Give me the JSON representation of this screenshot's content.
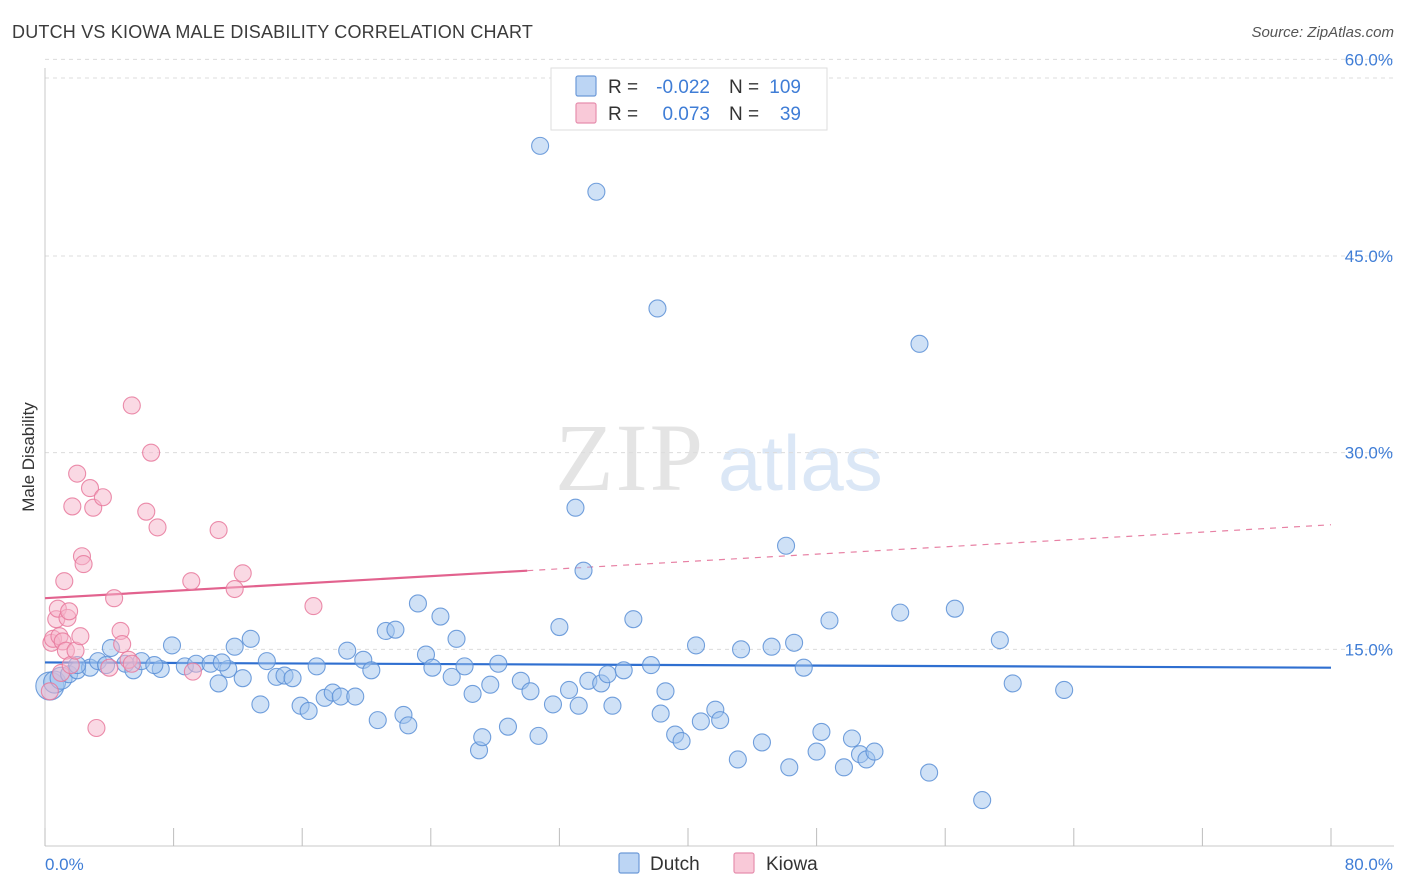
{
  "chart_data": {
    "type": "scatter",
    "title": "DUTCH VS KIOWA MALE DISABILITY CORRELATION CHART",
    "source": "Source: ZipAtlas.com",
    "ylabel": "Male Disability",
    "xlim": [
      0,
      80
    ],
    "ylim": [
      0,
      63
    ],
    "x_tick_labels": [
      "0.0%",
      "80.0%"
    ],
    "y_ticks": [
      15,
      30,
      45,
      60
    ],
    "y_tick_labels": [
      "15.0%",
      "30.0%",
      "45.0%",
      "60.0%"
    ],
    "grid": "horizontal dashed",
    "legend_placement": "bottom-center",
    "watermark": "ZIPatlas",
    "stats": [
      {
        "r_label": "R =",
        "r_value": "-0.022",
        "n_label": "N =",
        "n_value": "109"
      },
      {
        "r_label": "R =",
        "r_value": "0.073",
        "n_label": "N =",
        "n_value": "39"
      }
    ],
    "series": [
      {
        "name": "Dutch",
        "color": "#9fc3ee",
        "stroke": "#5b8fd6",
        "trend_color": "#2f6fd0",
        "trend": {
          "x0": 0,
          "y0": 14.0,
          "x1": 80,
          "y1": 13.6
        },
        "points": [
          [
            0.3,
            12.2
          ],
          [
            0.6,
            12.5
          ],
          [
            1.0,
            12.8
          ],
          [
            1.5,
            13.1
          ],
          [
            2.0,
            13.4
          ],
          [
            2.8,
            13.6
          ],
          [
            3.3,
            14.1
          ],
          [
            3.8,
            13.8
          ],
          [
            4.1,
            15.1
          ],
          [
            5.0,
            13.9
          ],
          [
            5.5,
            13.4
          ],
          [
            6.0,
            14.1
          ],
          [
            7.2,
            13.5
          ],
          [
            7.9,
            15.3
          ],
          [
            8.7,
            13.7
          ],
          [
            9.4,
            13.9
          ],
          [
            10.3,
            13.9
          ],
          [
            10.8,
            12.4
          ],
          [
            11.4,
            13.5
          ],
          [
            11.8,
            15.2
          ],
          [
            12.3,
            12.8
          ],
          [
            12.8,
            15.8
          ],
          [
            13.4,
            10.8
          ],
          [
            13.8,
            14.1
          ],
          [
            14.4,
            12.9
          ],
          [
            14.9,
            13.0
          ],
          [
            15.4,
            12.8
          ],
          [
            15.9,
            10.7
          ],
          [
            16.4,
            10.3
          ],
          [
            16.9,
            13.7
          ],
          [
            17.4,
            11.3
          ],
          [
            17.9,
            11.7
          ],
          [
            18.4,
            11.4
          ],
          [
            18.8,
            14.9
          ],
          [
            19.3,
            11.4
          ],
          [
            19.8,
            14.2
          ],
          [
            20.3,
            13.4
          ],
          [
            20.7,
            9.6
          ],
          [
            21.2,
            16.4
          ],
          [
            21.8,
            16.5
          ],
          [
            22.3,
            10.0
          ],
          [
            22.6,
            9.2
          ],
          [
            23.2,
            18.5
          ],
          [
            23.7,
            14.6
          ],
          [
            24.1,
            13.6
          ],
          [
            24.6,
            17.5
          ],
          [
            25.3,
            12.9
          ],
          [
            25.6,
            15.8
          ],
          [
            26.1,
            13.7
          ],
          [
            26.6,
            11.6
          ],
          [
            27.0,
            7.3
          ],
          [
            27.2,
            8.3
          ],
          [
            27.7,
            12.3
          ],
          [
            28.2,
            13.9
          ],
          [
            28.8,
            9.1
          ],
          [
            29.6,
            12.6
          ],
          [
            30.2,
            11.8
          ],
          [
            30.7,
            8.4
          ],
          [
            31.6,
            10.8
          ],
          [
            32.0,
            16.7
          ],
          [
            32.6,
            11.9
          ],
          [
            33.2,
            10.7
          ],
          [
            33.5,
            21.0
          ],
          [
            33.8,
            12.6
          ],
          [
            34.6,
            12.4
          ],
          [
            35.0,
            13.1
          ],
          [
            35.3,
            10.7
          ],
          [
            36.0,
            13.4
          ],
          [
            36.6,
            17.3
          ],
          [
            37.7,
            13.8
          ],
          [
            38.3,
            10.1
          ],
          [
            38.6,
            11.8
          ],
          [
            39.2,
            8.5
          ],
          [
            39.6,
            8.0
          ],
          [
            40.5,
            15.3
          ],
          [
            40.8,
            9.5
          ],
          [
            41.7,
            10.4
          ],
          [
            42.0,
            9.6
          ],
          [
            43.1,
            6.6
          ],
          [
            43.3,
            15.0
          ],
          [
            44.6,
            7.9
          ],
          [
            45.2,
            15.2
          ],
          [
            46.3,
            6.0
          ],
          [
            46.6,
            15.5
          ],
          [
            47.2,
            13.6
          ],
          [
            48.0,
            7.2
          ],
          [
            48.3,
            8.7
          ],
          [
            48.8,
            17.2
          ],
          [
            49.7,
            6.0
          ],
          [
            50.2,
            8.2
          ],
          [
            50.7,
            7.0
          ],
          [
            51.1,
            6.6
          ],
          [
            51.6,
            7.2
          ],
          [
            53.2,
            17.8
          ],
          [
            55.0,
            5.6
          ],
          [
            56.6,
            18.1
          ],
          [
            59.4,
            15.7
          ],
          [
            60.2,
            12.4
          ],
          [
            63.4,
            11.9
          ],
          [
            30.8,
            53.4
          ],
          [
            34.3,
            49.9
          ],
          [
            38.1,
            41.0
          ],
          [
            54.4,
            38.3
          ],
          [
            33.0,
            25.8
          ],
          [
            46.1,
            22.9
          ],
          [
            58.3,
            3.5
          ],
          [
            2.0,
            13.8
          ],
          [
            6.8,
            13.8
          ],
          [
            11.0,
            14.0
          ]
        ]
      },
      {
        "name": "Kiowa",
        "color": "#f6b3c9",
        "stroke": "#e7799c",
        "trend_color": "#e2628e",
        "trend": {
          "x0": 0,
          "y0": 18.9,
          "x1": 30,
          "y1": 21.0
        },
        "trend_dashed_to": {
          "x": 80,
          "y": 24.5
        },
        "points": [
          [
            0.3,
            11.8
          ],
          [
            0.4,
            15.5
          ],
          [
            0.5,
            15.8
          ],
          [
            0.7,
            17.3
          ],
          [
            0.8,
            18.1
          ],
          [
            0.9,
            16.0
          ],
          [
            1.0,
            13.2
          ],
          [
            1.1,
            15.6
          ],
          [
            1.2,
            20.2
          ],
          [
            1.3,
            14.9
          ],
          [
            1.4,
            17.4
          ],
          [
            1.5,
            17.9
          ],
          [
            1.6,
            13.8
          ],
          [
            1.7,
            25.9
          ],
          [
            1.9,
            14.9
          ],
          [
            2.0,
            28.4
          ],
          [
            2.2,
            16.0
          ],
          [
            2.3,
            22.1
          ],
          [
            2.4,
            21.5
          ],
          [
            2.8,
            27.3
          ],
          [
            3.0,
            25.8
          ],
          [
            3.2,
            9.0
          ],
          [
            3.6,
            26.6
          ],
          [
            4.0,
            13.6
          ],
          [
            4.3,
            18.9
          ],
          [
            4.7,
            16.4
          ],
          [
            4.8,
            15.4
          ],
          [
            5.2,
            14.2
          ],
          [
            5.4,
            13.9
          ],
          [
            5.4,
            33.6
          ],
          [
            6.3,
            25.5
          ],
          [
            6.6,
            30.0
          ],
          [
            7.0,
            24.3
          ],
          [
            9.1,
            20.2
          ],
          [
            9.2,
            13.3
          ],
          [
            10.8,
            24.1
          ],
          [
            11.8,
            19.6
          ],
          [
            12.3,
            20.8
          ],
          [
            16.7,
            18.3
          ]
        ]
      }
    ]
  }
}
